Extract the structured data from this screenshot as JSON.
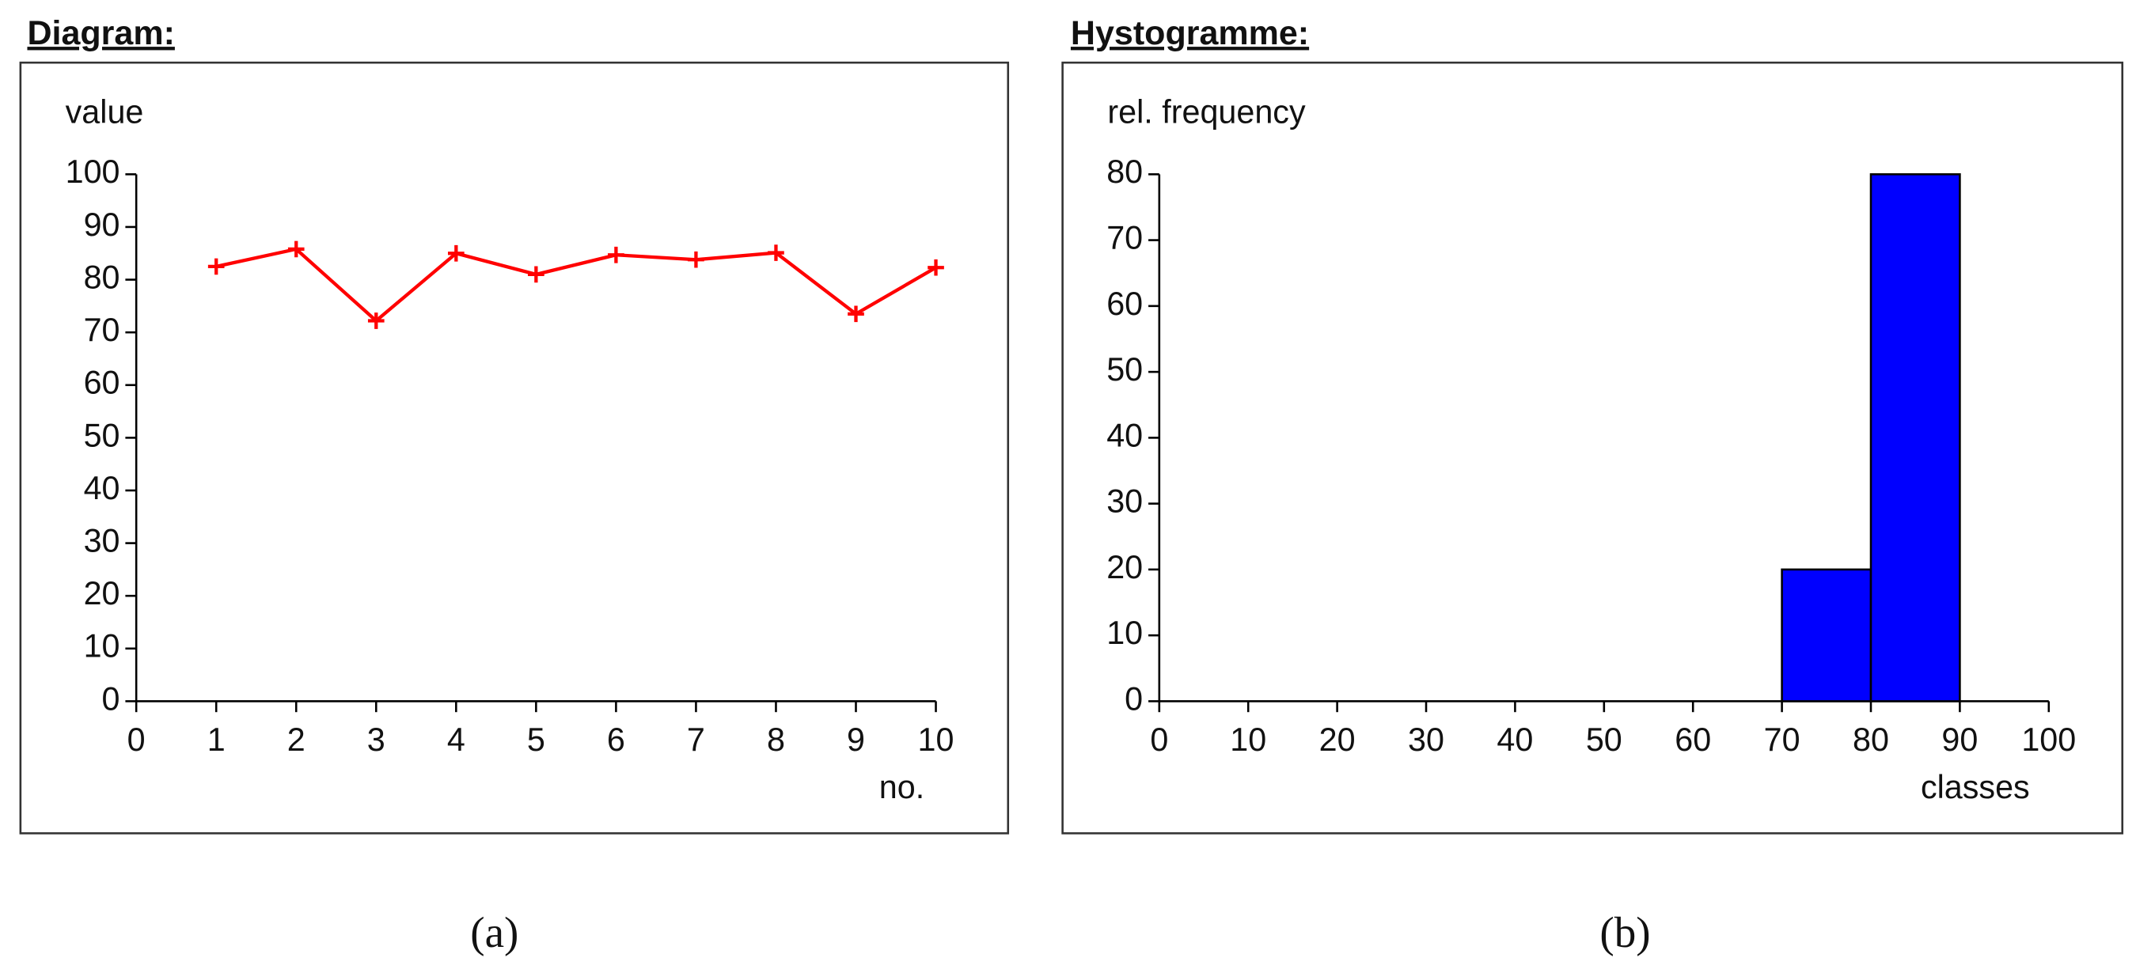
{
  "chart_data": [
    {
      "type": "line",
      "header": "Diagram:",
      "ylabel": "value",
      "xlabel": "no.",
      "caption": "(a)",
      "x": [
        1,
        2,
        3,
        4,
        5,
        6,
        7,
        8,
        9,
        10
      ],
      "values": [
        82.5,
        85.8,
        72.2,
        85,
        81,
        84.7,
        83.8,
        85.1,
        73.5,
        82.3
      ],
      "color": "#ff0000",
      "xlim": [
        0,
        10
      ],
      "xticks": [
        0,
        1,
        2,
        3,
        4,
        5,
        6,
        7,
        8,
        9,
        10
      ],
      "ylim": [
        0,
        100
      ],
      "yticks": [
        0,
        10,
        20,
        30,
        40,
        50,
        60,
        70,
        80,
        90,
        100
      ]
    },
    {
      "type": "histogram",
      "header": "Hystogramme:",
      "ylabel": "rel. frequency",
      "xlabel": "classes",
      "caption": "(b)",
      "bins": [
        0,
        10,
        20,
        30,
        40,
        50,
        60,
        70,
        80,
        90,
        100
      ],
      "values": [
        0,
        0,
        0,
        0,
        0,
        0,
        0,
        20,
        80,
        0
      ],
      "color": "#0000ff",
      "xlim": [
        0,
        100
      ],
      "xticks": [
        0,
        10,
        20,
        30,
        40,
        50,
        60,
        70,
        80,
        90,
        100
      ],
      "ylim": [
        0,
        80
      ],
      "yticks": [
        0,
        10,
        20,
        30,
        40,
        50,
        60,
        70,
        80
      ]
    }
  ]
}
